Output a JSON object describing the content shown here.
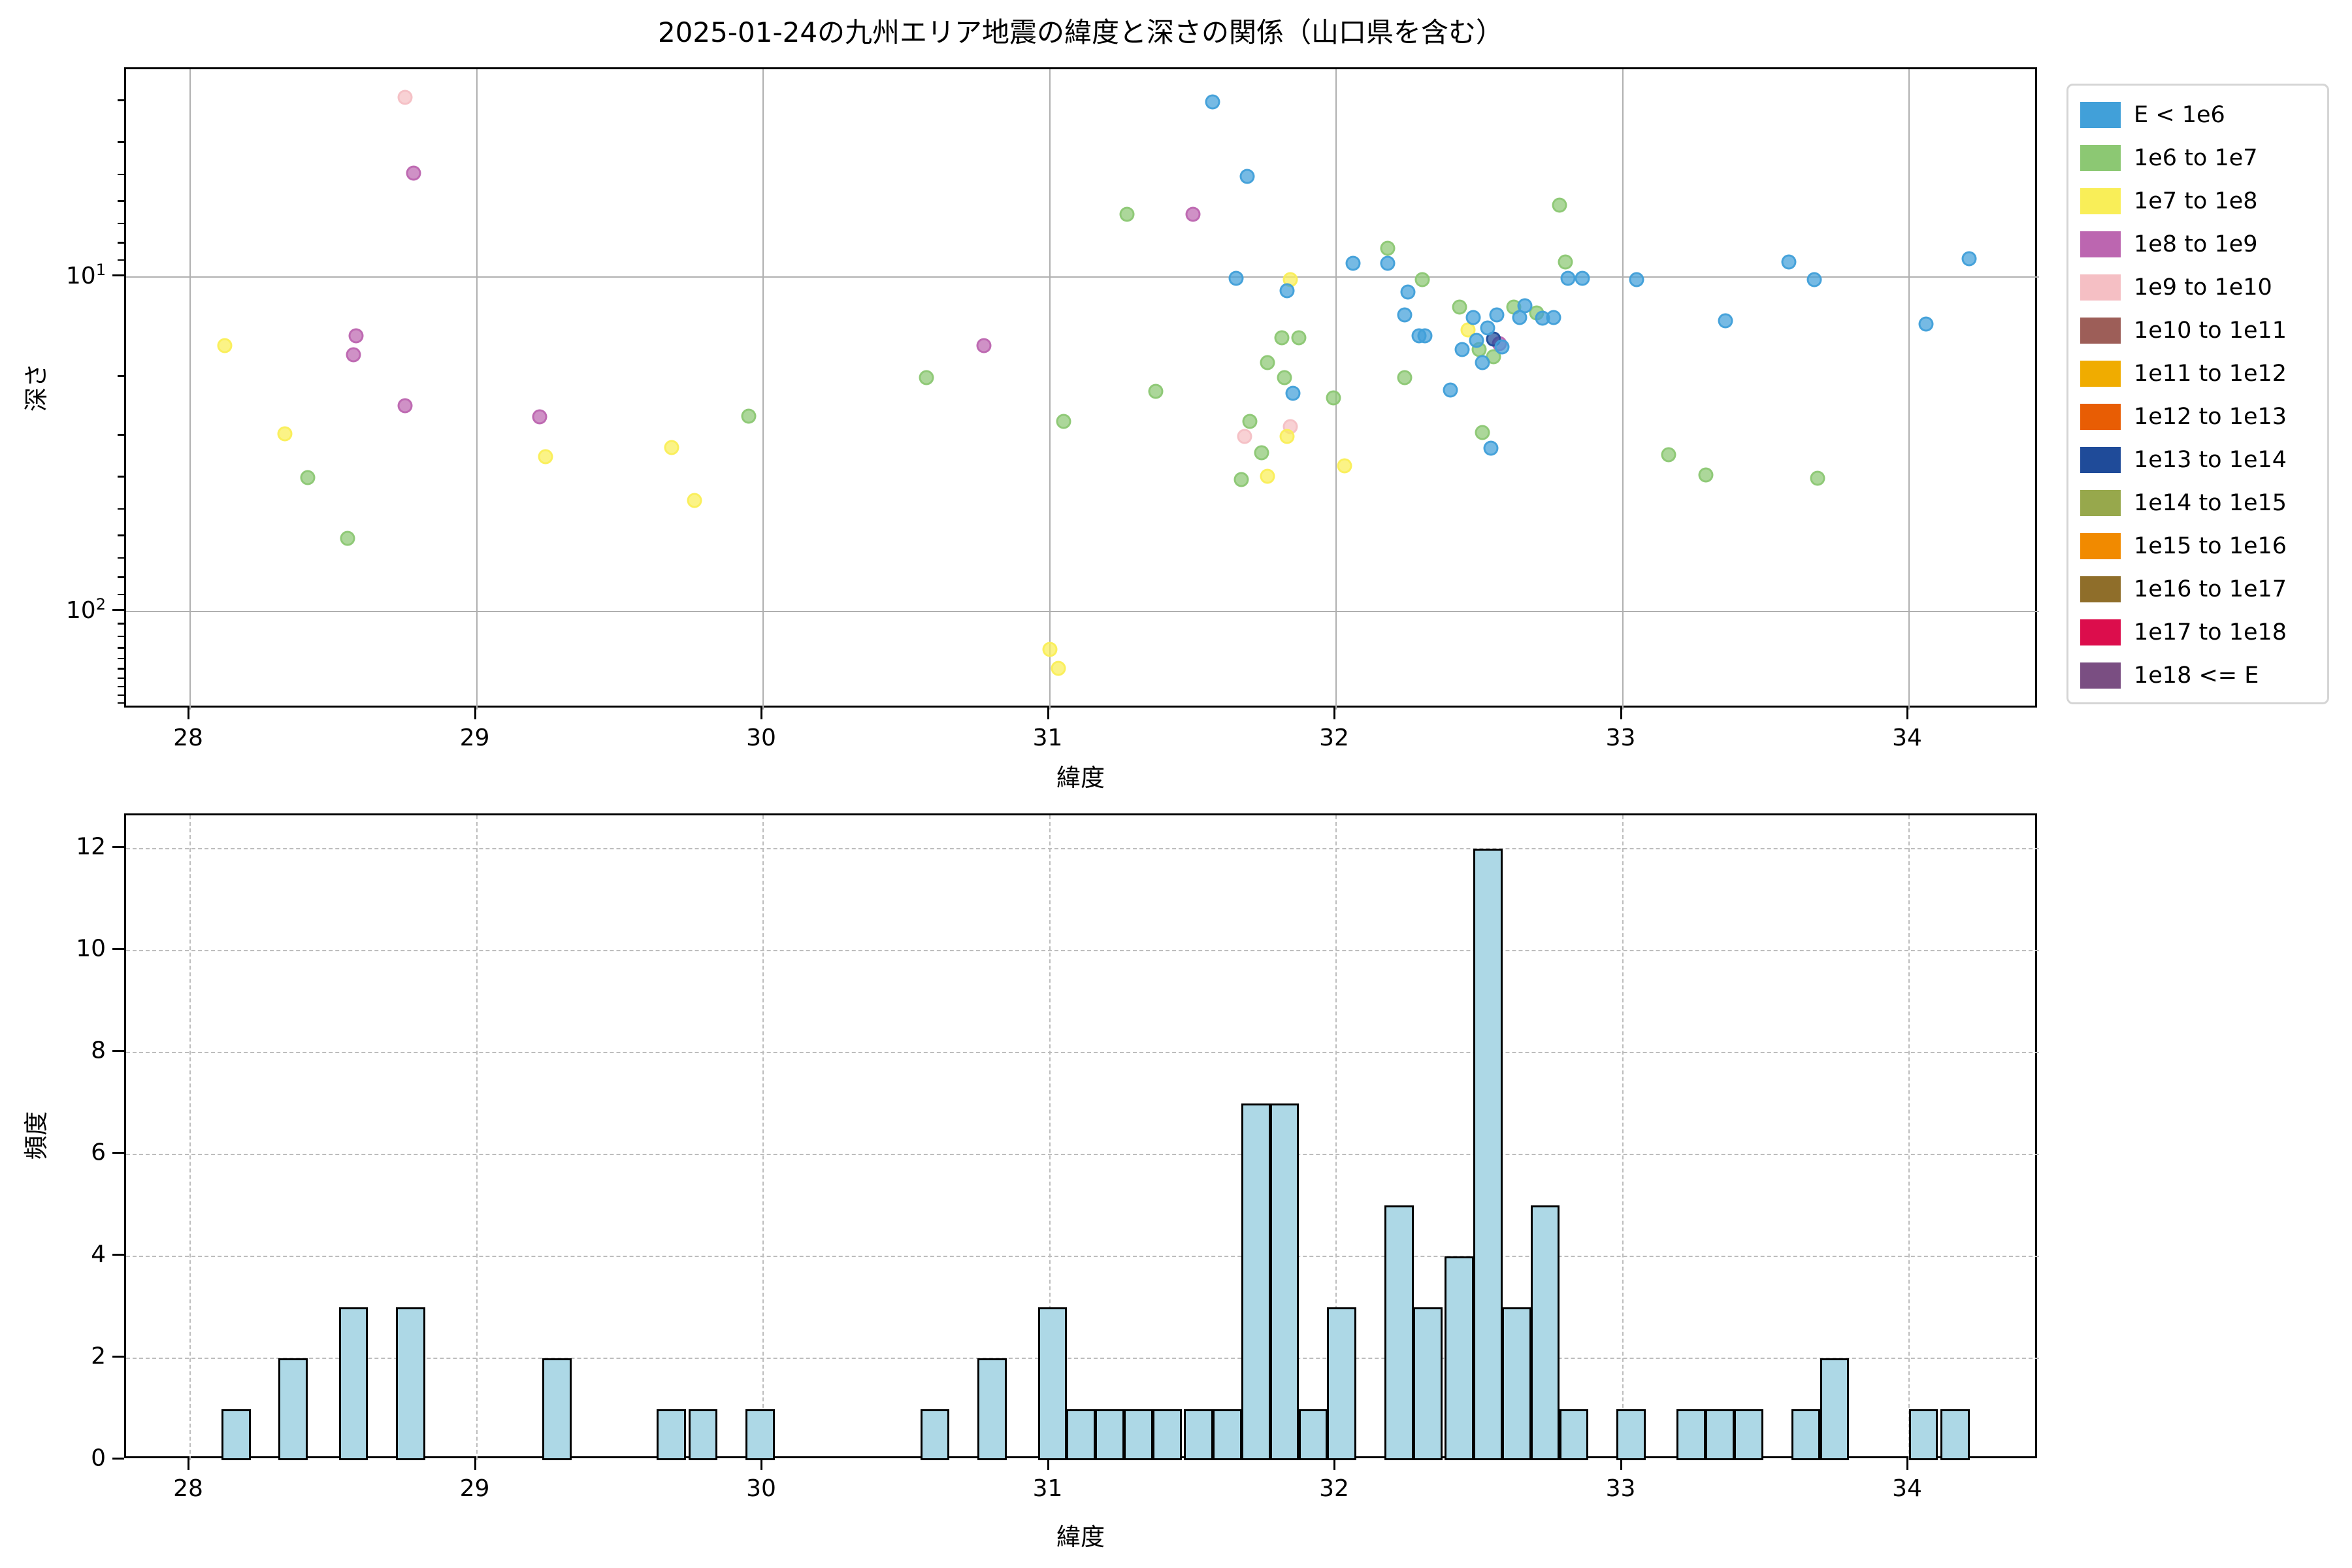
{
  "title": "2025-01-24の九州エリア地震の緯度と深さの関係（山口県を含む）",
  "legend": {
    "entries": [
      {
        "label": "E < 1e6",
        "color": "#41A0D9"
      },
      {
        "label": "1e6 to 1e7",
        "color": "#8CC873"
      },
      {
        "label": "1e7 to 1e8",
        "color": "#F9EE58"
      },
      {
        "label": "1e8 to 1e9",
        "color": "#BC66B0"
      },
      {
        "label": "1e9 to 1e10",
        "color": "#F5BFC4"
      },
      {
        "label": "1e10 to 1e11",
        "color": "#9D5E58"
      },
      {
        "label": "1e11 to 1e12",
        "color": "#F0AC00"
      },
      {
        "label": "1e12 to 1e13",
        "color": "#E85D04"
      },
      {
        "label": "1e13 to 1e14",
        "color": "#1F4B99"
      },
      {
        "label": "1e14 to 1e15",
        "color": "#97A84C"
      },
      {
        "label": "1e15 to 1e16",
        "color": "#F18A00"
      },
      {
        "label": "1e16 to 1e17",
        "color": "#8F6E2A"
      },
      {
        "label": "1e17 to 1e18",
        "color": "#DC0D4C"
      },
      {
        "label": "1e18 <= E",
        "color": "#7A4E82"
      }
    ]
  },
  "chart_data": [
    {
      "type": "scatter",
      "title": "",
      "xlabel": "緯度",
      "ylabel": "深さ",
      "xlim": [
        27.78,
        34.45
      ],
      "x_ticks": [
        28,
        29,
        30,
        31,
        32,
        33,
        34
      ],
      "y_scale": "log",
      "y_inverted": true,
      "ylim": [
        2.4,
        196
      ],
      "y_major_ticks": [
        {
          "base": "10",
          "exp": "1",
          "value": 10
        },
        {
          "base": "10",
          "exp": "2",
          "value": 100
        }
      ],
      "grid": true,
      "legend_position": "upper right outside",
      "series_key_by_energy_bin": true,
      "points": [
        {
          "lat": 28.75,
          "depth": 2.9,
          "bin": "1e9 to 1e10"
        },
        {
          "lat": 31.68,
          "depth": 30,
          "bin": "1e9 to 1e10"
        },
        {
          "lat": 31.84,
          "depth": 28,
          "bin": "1e9 to 1e10"
        },
        {
          "lat": 28.78,
          "depth": 4.9,
          "bin": "1e8 to 1e9"
        },
        {
          "lat": 28.58,
          "depth": 15.0,
          "bin": "1e8 to 1e9"
        },
        {
          "lat": 28.57,
          "depth": 17.1,
          "bin": "1e8 to 1e9"
        },
        {
          "lat": 28.75,
          "depth": 24.2,
          "bin": "1e8 to 1e9"
        },
        {
          "lat": 29.22,
          "depth": 26.2,
          "bin": "1e8 to 1e9"
        },
        {
          "lat": 30.77,
          "depth": 16,
          "bin": "1e8 to 1e9"
        },
        {
          "lat": 31.5,
          "depth": 6.5,
          "bin": "1e8 to 1e9"
        },
        {
          "lat": 32.57,
          "depth": 15.8,
          "bin": "1e8 to 1e9"
        },
        {
          "lat": 32.55,
          "depth": 15.3,
          "bin": "1e13 to 1e14"
        },
        {
          "lat": 28.12,
          "depth": 16.0,
          "bin": "1e7 to 1e8"
        },
        {
          "lat": 28.33,
          "depth": 29.4,
          "bin": "1e7 to 1e8"
        },
        {
          "lat": 29.24,
          "depth": 34.4,
          "bin": "1e7 to 1e8"
        },
        {
          "lat": 29.68,
          "depth": 32.4,
          "bin": "1e7 to 1e8"
        },
        {
          "lat": 29.76,
          "depth": 46.6,
          "bin": "1e7 to 1e8"
        },
        {
          "lat": 31.0,
          "depth": 130,
          "bin": "1e7 to 1e8"
        },
        {
          "lat": 31.03,
          "depth": 148,
          "bin": "1e7 to 1e8"
        },
        {
          "lat": 31.76,
          "depth": 39.5,
          "bin": "1e7 to 1e8"
        },
        {
          "lat": 31.84,
          "depth": 10.2,
          "bin": "1e7 to 1e8"
        },
        {
          "lat": 31.83,
          "depth": 30,
          "bin": "1e7 to 1e8"
        },
        {
          "lat": 32.03,
          "depth": 36.7,
          "bin": "1e7 to 1e8"
        },
        {
          "lat": 32.46,
          "depth": 14.4,
          "bin": "1e7 to 1e8"
        },
        {
          "lat": 28.41,
          "depth": 39.7,
          "bin": "1e6 to 1e7"
        },
        {
          "lat": 28.55,
          "depth": 60.3,
          "bin": "1e6 to 1e7"
        },
        {
          "lat": 29.95,
          "depth": 26.1,
          "bin": "1e6 to 1e7"
        },
        {
          "lat": 30.57,
          "depth": 20,
          "bin": "1e6 to 1e7"
        },
        {
          "lat": 31.05,
          "depth": 27,
          "bin": "1e6 to 1e7"
        },
        {
          "lat": 31.27,
          "depth": 6.5,
          "bin": "1e6 to 1e7"
        },
        {
          "lat": 31.37,
          "depth": 22,
          "bin": "1e6 to 1e7"
        },
        {
          "lat": 31.67,
          "depth": 40.3,
          "bin": "1e6 to 1e7"
        },
        {
          "lat": 31.7,
          "depth": 27,
          "bin": "1e6 to 1e7"
        },
        {
          "lat": 31.74,
          "depth": 33.5,
          "bin": "1e6 to 1e7"
        },
        {
          "lat": 31.76,
          "depth": 18,
          "bin": "1e6 to 1e7"
        },
        {
          "lat": 31.81,
          "depth": 15.2,
          "bin": "1e6 to 1e7"
        },
        {
          "lat": 31.87,
          "depth": 15.2,
          "bin": "1e6 to 1e7"
        },
        {
          "lat": 31.82,
          "depth": 20,
          "bin": "1e6 to 1e7"
        },
        {
          "lat": 31.99,
          "depth": 23,
          "bin": "1e6 to 1e7"
        },
        {
          "lat": 32.18,
          "depth": 8.2,
          "bin": "1e6 to 1e7"
        },
        {
          "lat": 32.3,
          "depth": 10.2,
          "bin": "1e6 to 1e7"
        },
        {
          "lat": 32.24,
          "depth": 20,
          "bin": "1e6 to 1e7"
        },
        {
          "lat": 32.43,
          "depth": 12.3,
          "bin": "1e6 to 1e7"
        },
        {
          "lat": 32.5,
          "depth": 16.5,
          "bin": "1e6 to 1e7"
        },
        {
          "lat": 32.51,
          "depth": 29.2,
          "bin": "1e6 to 1e7"
        },
        {
          "lat": 32.55,
          "depth": 17.3,
          "bin": "1e6 to 1e7"
        },
        {
          "lat": 32.62,
          "depth": 12.3,
          "bin": "1e6 to 1e7"
        },
        {
          "lat": 32.7,
          "depth": 12.8,
          "bin": "1e6 to 1e7"
        },
        {
          "lat": 32.78,
          "depth": 6.1,
          "bin": "1e6 to 1e7"
        },
        {
          "lat": 32.8,
          "depth": 9.0,
          "bin": "1e6 to 1e7"
        },
        {
          "lat": 33.16,
          "depth": 34,
          "bin": "1e6 to 1e7"
        },
        {
          "lat": 33.29,
          "depth": 39,
          "bin": "1e6 to 1e7"
        },
        {
          "lat": 33.68,
          "depth": 40,
          "bin": "1e6 to 1e7"
        },
        {
          "lat": 31.57,
          "depth": 3.0,
          "bin": "E < 1e6"
        },
        {
          "lat": 31.69,
          "depth": 5.0,
          "bin": "E < 1e6"
        },
        {
          "lat": 31.65,
          "depth": 10.1,
          "bin": "E < 1e6"
        },
        {
          "lat": 31.83,
          "depth": 11,
          "bin": "E < 1e6"
        },
        {
          "lat": 31.85,
          "depth": 22.3,
          "bin": "E < 1e6"
        },
        {
          "lat": 32.06,
          "depth": 9.1,
          "bin": "E < 1e6"
        },
        {
          "lat": 32.18,
          "depth": 9.1,
          "bin": "E < 1e6"
        },
        {
          "lat": 32.25,
          "depth": 11.1,
          "bin": "E < 1e6"
        },
        {
          "lat": 32.24,
          "depth": 13,
          "bin": "E < 1e6"
        },
        {
          "lat": 32.29,
          "depth": 15,
          "bin": "E < 1e6"
        },
        {
          "lat": 32.31,
          "depth": 15,
          "bin": "E < 1e6"
        },
        {
          "lat": 32.4,
          "depth": 21.8,
          "bin": "E < 1e6"
        },
        {
          "lat": 32.44,
          "depth": 16.5,
          "bin": "E < 1e6"
        },
        {
          "lat": 32.48,
          "depth": 13.2,
          "bin": "E < 1e6"
        },
        {
          "lat": 32.49,
          "depth": 15.5,
          "bin": "E < 1e6"
        },
        {
          "lat": 32.51,
          "depth": 18,
          "bin": "E < 1e6"
        },
        {
          "lat": 32.53,
          "depth": 14.2,
          "bin": "E < 1e6"
        },
        {
          "lat": 32.54,
          "depth": 32.5,
          "bin": "E < 1e6"
        },
        {
          "lat": 32.56,
          "depth": 13,
          "bin": "E < 1e6"
        },
        {
          "lat": 32.58,
          "depth": 16.2,
          "bin": "E < 1e6"
        },
        {
          "lat": 32.64,
          "depth": 13.2,
          "bin": "E < 1e6"
        },
        {
          "lat": 32.66,
          "depth": 12.2,
          "bin": "E < 1e6"
        },
        {
          "lat": 32.72,
          "depth": 13.3,
          "bin": "E < 1e6"
        },
        {
          "lat": 32.76,
          "depth": 13.2,
          "bin": "E < 1e6"
        },
        {
          "lat": 32.81,
          "depth": 10.1,
          "bin": "E < 1e6"
        },
        {
          "lat": 32.86,
          "depth": 10.1,
          "bin": "E < 1e6"
        },
        {
          "lat": 33.05,
          "depth": 10.2,
          "bin": "E < 1e6"
        },
        {
          "lat": 33.36,
          "depth": 13.5,
          "bin": "E < 1e6"
        },
        {
          "lat": 33.58,
          "depth": 9.0,
          "bin": "E < 1e6"
        },
        {
          "lat": 33.67,
          "depth": 10.2,
          "bin": "E < 1e6"
        },
        {
          "lat": 34.06,
          "depth": 13.8,
          "bin": "E < 1e6"
        },
        {
          "lat": 34.21,
          "depth": 8.8,
          "bin": "E < 1e6"
        }
      ]
    },
    {
      "type": "bar",
      "title": "",
      "xlabel": "緯度",
      "ylabel": "頻度",
      "xlim": [
        27.78,
        34.45
      ],
      "x_ticks": [
        28,
        29,
        30,
        31,
        32,
        33,
        34
      ],
      "ylim": [
        0,
        12.65
      ],
      "y_ticks": [
        0,
        2,
        4,
        6,
        8,
        10,
        12
      ],
      "grid": "dashed",
      "bar_color": "#ADD8E6",
      "bar_edge_color": "#000000",
      "bin_width": 0.102,
      "bars": [
        {
          "lat": 28.16,
          "count": 1
        },
        {
          "lat": 28.36,
          "count": 2
        },
        {
          "lat": 28.57,
          "count": 3
        },
        {
          "lat": 28.77,
          "count": 3
        },
        {
          "lat": 29.28,
          "count": 2
        },
        {
          "lat": 29.68,
          "count": 1
        },
        {
          "lat": 29.79,
          "count": 1
        },
        {
          "lat": 29.99,
          "count": 1
        },
        {
          "lat": 30.6,
          "count": 1
        },
        {
          "lat": 30.8,
          "count": 2
        },
        {
          "lat": 31.01,
          "count": 3
        },
        {
          "lat": 31.11,
          "count": 1
        },
        {
          "lat": 31.21,
          "count": 1
        },
        {
          "lat": 31.31,
          "count": 1
        },
        {
          "lat": 31.41,
          "count": 1
        },
        {
          "lat": 31.52,
          "count": 1
        },
        {
          "lat": 31.62,
          "count": 1
        },
        {
          "lat": 31.72,
          "count": 7
        },
        {
          "lat": 31.82,
          "count": 7
        },
        {
          "lat": 31.92,
          "count": 1
        },
        {
          "lat": 32.02,
          "count": 3
        },
        {
          "lat": 32.22,
          "count": 5
        },
        {
          "lat": 32.32,
          "count": 3
        },
        {
          "lat": 32.43,
          "count": 4
        },
        {
          "lat": 32.53,
          "count": 12
        },
        {
          "lat": 32.63,
          "count": 3
        },
        {
          "lat": 32.73,
          "count": 5
        },
        {
          "lat": 32.83,
          "count": 1
        },
        {
          "lat": 33.03,
          "count": 1
        },
        {
          "lat": 33.24,
          "count": 1
        },
        {
          "lat": 33.34,
          "count": 1
        },
        {
          "lat": 33.44,
          "count": 1
        },
        {
          "lat": 33.64,
          "count": 1
        },
        {
          "lat": 33.74,
          "count": 2
        },
        {
          "lat": 34.05,
          "count": 1
        },
        {
          "lat": 34.16,
          "count": 1
        }
      ]
    }
  ]
}
